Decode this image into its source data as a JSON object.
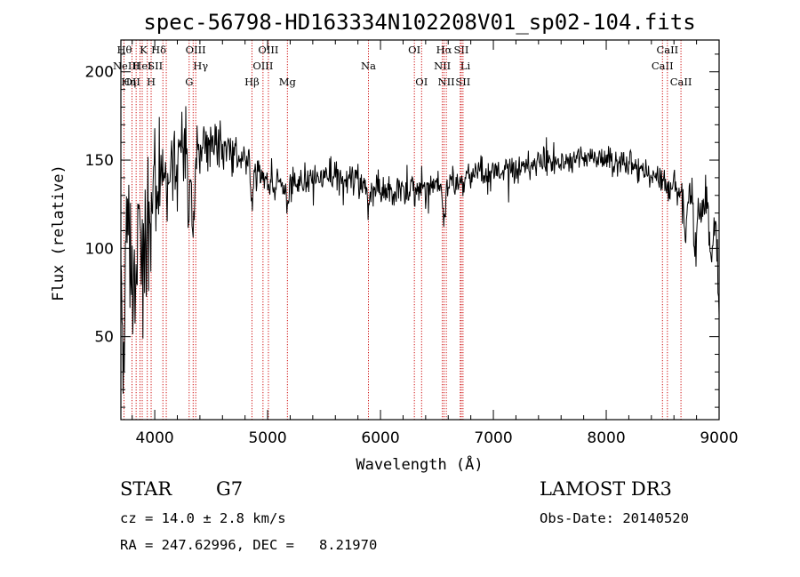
{
  "chart_data": {
    "type": "line",
    "title": "spec-56798-HD163334N102208V01_sp02-104.fits",
    "xlabel": "Wavelength (Å)",
    "ylabel": "Flux (relative)",
    "xlim": [
      3700,
      9000
    ],
    "ylim": [
      3,
      218
    ],
    "x_ticks": [
      "4000",
      "5000",
      "6000",
      "7000",
      "8000",
      "9000"
    ],
    "y_ticks": [
      "50",
      "100",
      "150",
      "200"
    ],
    "grid": false,
    "color": "#000000",
    "line_color": "#cc0000",
    "continuum": [
      {
        "x": 3700,
        "y": 100
      },
      {
        "x": 3760,
        "y": 108
      },
      {
        "x": 3820,
        "y": 120
      },
      {
        "x": 3880,
        "y": 130
      },
      {
        "x": 3950,
        "y": 140
      },
      {
        "x": 4050,
        "y": 146
      },
      {
        "x": 4200,
        "y": 150
      },
      {
        "x": 4300,
        "y": 152
      },
      {
        "x": 4400,
        "y": 158
      },
      {
        "x": 4500,
        "y": 160
      },
      {
        "x": 4600,
        "y": 158
      },
      {
        "x": 4700,
        "y": 155
      },
      {
        "x": 4800,
        "y": 150
      },
      {
        "x": 4900,
        "y": 143
      },
      {
        "x": 5000,
        "y": 140
      },
      {
        "x": 5100,
        "y": 137
      },
      {
        "x": 5200,
        "y": 136
      },
      {
        "x": 5400,
        "y": 140
      },
      {
        "x": 5600,
        "y": 140
      },
      {
        "x": 5800,
        "y": 138
      },
      {
        "x": 6000,
        "y": 135
      },
      {
        "x": 6200,
        "y": 133
      },
      {
        "x": 6400,
        "y": 133
      },
      {
        "x": 6600,
        "y": 136
      },
      {
        "x": 6800,
        "y": 140
      },
      {
        "x": 7000,
        "y": 143
      },
      {
        "x": 7200,
        "y": 145
      },
      {
        "x": 7400,
        "y": 148
      },
      {
        "x": 7600,
        "y": 151
      },
      {
        "x": 7800,
        "y": 152
      },
      {
        "x": 8000,
        "y": 150
      },
      {
        "x": 8200,
        "y": 147
      },
      {
        "x": 8400,
        "y": 141
      },
      {
        "x": 8600,
        "y": 134
      },
      {
        "x": 8800,
        "y": 126
      },
      {
        "x": 8900,
        "y": 118
      },
      {
        "x": 9000,
        "y": 112
      }
    ],
    "noise": [
      {
        "x": 3700,
        "amp": 45
      },
      {
        "x": 3900,
        "amp": 42
      },
      {
        "x": 4100,
        "amp": 28
      },
      {
        "x": 4400,
        "amp": 15
      },
      {
        "x": 4800,
        "amp": 10
      },
      {
        "x": 5500,
        "amp": 9
      },
      {
        "x": 6500,
        "amp": 9
      },
      {
        "x": 8000,
        "amp": 8
      },
      {
        "x": 8700,
        "amp": 10
      },
      {
        "x": 9000,
        "amp": 15
      }
    ],
    "features": [
      {
        "x": 3720,
        "depth": 70
      },
      {
        "x": 3800,
        "depth": 55
      },
      {
        "x": 3835,
        "depth": 40
      },
      {
        "x": 3889,
        "depth": 50
      },
      {
        "x": 3934,
        "depth": 40
      },
      {
        "x": 3968,
        "depth": 30
      },
      {
        "x": 4102,
        "depth": 25
      },
      {
        "x": 4300,
        "depth": 35
      },
      {
        "x": 4340,
        "depth": 45
      },
      {
        "x": 4861,
        "depth": 20
      },
      {
        "x": 5175,
        "depth": 12
      },
      {
        "x": 5893,
        "depth": 14
      },
      {
        "x": 6563,
        "depth": 22
      },
      {
        "x": 8700,
        "depth": 22
      },
      {
        "x": 8790,
        "depth": 30
      },
      {
        "x": 8930,
        "depth": 18
      },
      {
        "x": 9000,
        "depth": 40
      }
    ],
    "series": [
      {
        "name": "flux",
        "step": 5
      }
    ],
    "line_markers": [
      {
        "x": 3727,
        "label": "OII",
        "row": 2,
        "align": "start"
      },
      {
        "x": 3798,
        "label": "Hθ",
        "row": 0,
        "align": "end"
      },
      {
        "x": 3835,
        "label": "Hη",
        "row": 2,
        "align": "end"
      },
      {
        "x": 3869,
        "label": "NeIII",
        "row": 1,
        "align": "end"
      },
      {
        "x": 3889,
        "label": "HeI",
        "row": 1,
        "align": "middle"
      },
      {
        "x": 3934,
        "label": "K",
        "row": 0,
        "align": "end"
      },
      {
        "x": 3968,
        "label": "H",
        "row": 2,
        "align": "middle"
      },
      {
        "x": 4072,
        "label": "SII",
        "row": 1,
        "align": "end"
      },
      {
        "x": 4102,
        "label": "Hδ",
        "row": 0,
        "align": "end"
      },
      {
        "x": 4305,
        "label": "G",
        "row": 2,
        "align": "middle"
      },
      {
        "x": 4340,
        "label": "Hγ",
        "row": 1,
        "align": "start"
      },
      {
        "x": 4363,
        "label": "OIII",
        "row": 0,
        "align": "middle"
      },
      {
        "x": 4861,
        "label": "Hβ",
        "row": 2,
        "align": "middle"
      },
      {
        "x": 4959,
        "label": "OIII",
        "row": 1,
        "align": "middle"
      },
      {
        "x": 5007,
        "label": "OIII",
        "row": 0,
        "align": "middle"
      },
      {
        "x": 5175,
        "label": "Mg",
        "row": 2,
        "align": "middle"
      },
      {
        "x": 5893,
        "label": "Na",
        "row": 1,
        "align": "middle"
      },
      {
        "x": 6300,
        "label": "OI",
        "row": 0,
        "align": "middle"
      },
      {
        "x": 6364,
        "label": "OI",
        "row": 2,
        "align": "middle"
      },
      {
        "x": 6548,
        "label": "NII",
        "row": 1,
        "align": "middle"
      },
      {
        "x": 6563,
        "label": "Hα",
        "row": 0,
        "align": "middle"
      },
      {
        "x": 6583,
        "label": "NII",
        "row": 2,
        "align": "middle"
      },
      {
        "x": 6707,
        "label": "Li",
        "row": 1,
        "align": "start"
      },
      {
        "x": 6716,
        "label": "SII",
        "row": 0,
        "align": "middle"
      },
      {
        "x": 6731,
        "label": "SII",
        "row": 2,
        "align": "middle"
      },
      {
        "x": 8498,
        "label": "CaII",
        "row": 1,
        "align": "middle"
      },
      {
        "x": 8542,
        "label": "CaII",
        "row": 0,
        "align": "middle"
      },
      {
        "x": 8662,
        "label": "CaII",
        "row": 2,
        "align": "middle"
      }
    ]
  },
  "info": {
    "object_class": "STAR",
    "subclass": "G7",
    "survey": "LAMOST DR3",
    "redshift": "cz = 14.0 ± 2.8 km/s",
    "obs_date": "Obs-Date: 20140520",
    "coords": "RA = 247.62996, DEC =   8.21970"
  }
}
